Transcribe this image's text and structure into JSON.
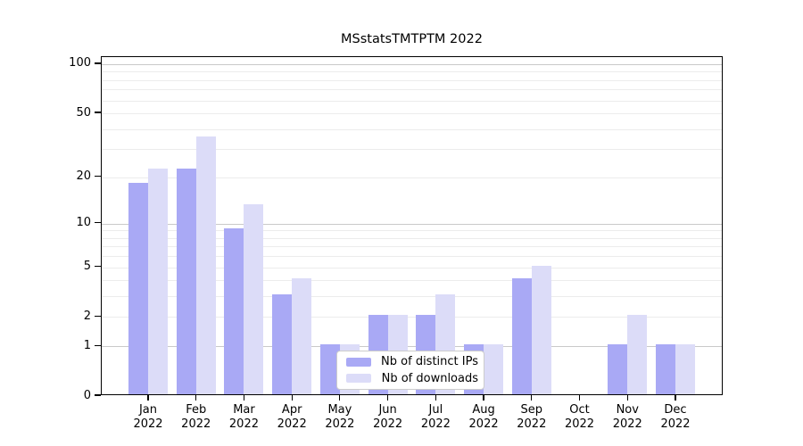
{
  "title": "MSstatsTMTPTM 2022",
  "legend": {
    "items": [
      {
        "id": "ips",
        "label": "Nb of distinct IPs",
        "color": "#a9a9f5"
      },
      {
        "id": "downloads",
        "label": "Nb of downloads",
        "color": "#dcdcf8"
      }
    ]
  },
  "colors": {
    "bar_ips": "#a9a9f5",
    "bar_downloads": "#dcdcf8",
    "grid_minor": "#ececec",
    "grid_major": "#c9c9c9",
    "axis": "#000000"
  },
  "chart_data": {
    "type": "bar",
    "title": "MSstatsTMTPTM 2022",
    "categories": [
      "Jan",
      "Feb",
      "Mar",
      "Apr",
      "May",
      "Jun",
      "Jul",
      "Aug",
      "Sep",
      "Oct",
      "Nov",
      "Dec"
    ],
    "category_year": "2022",
    "series": [
      {
        "id": "ips",
        "name": "Nb of distinct IPs",
        "color": "#a9a9f5",
        "values": [
          18,
          22,
          9,
          3,
          1,
          2,
          2,
          1,
          4,
          0,
          1,
          1
        ]
      },
      {
        "id": "downloads",
        "name": "Nb of downloads",
        "color": "#dcdcf8",
        "values": [
          22,
          35,
          13,
          4,
          1,
          2,
          3,
          1,
          5,
          0,
          2,
          1
        ]
      }
    ],
    "xlabel": "",
    "ylabel": "",
    "y_ticks": [
      0,
      1,
      2,
      5,
      10,
      20,
      50,
      100
    ],
    "y_scale": "log10(1+v)",
    "ylim": [
      0,
      100
    ],
    "grid": "on",
    "gridlines": {
      "minor": [
        2,
        3,
        4,
        5,
        6,
        7,
        8,
        9,
        20,
        30,
        40,
        50,
        60,
        70,
        80,
        90
      ],
      "major": [
        1,
        10,
        100
      ]
    },
    "legend_position": "lower center"
  }
}
